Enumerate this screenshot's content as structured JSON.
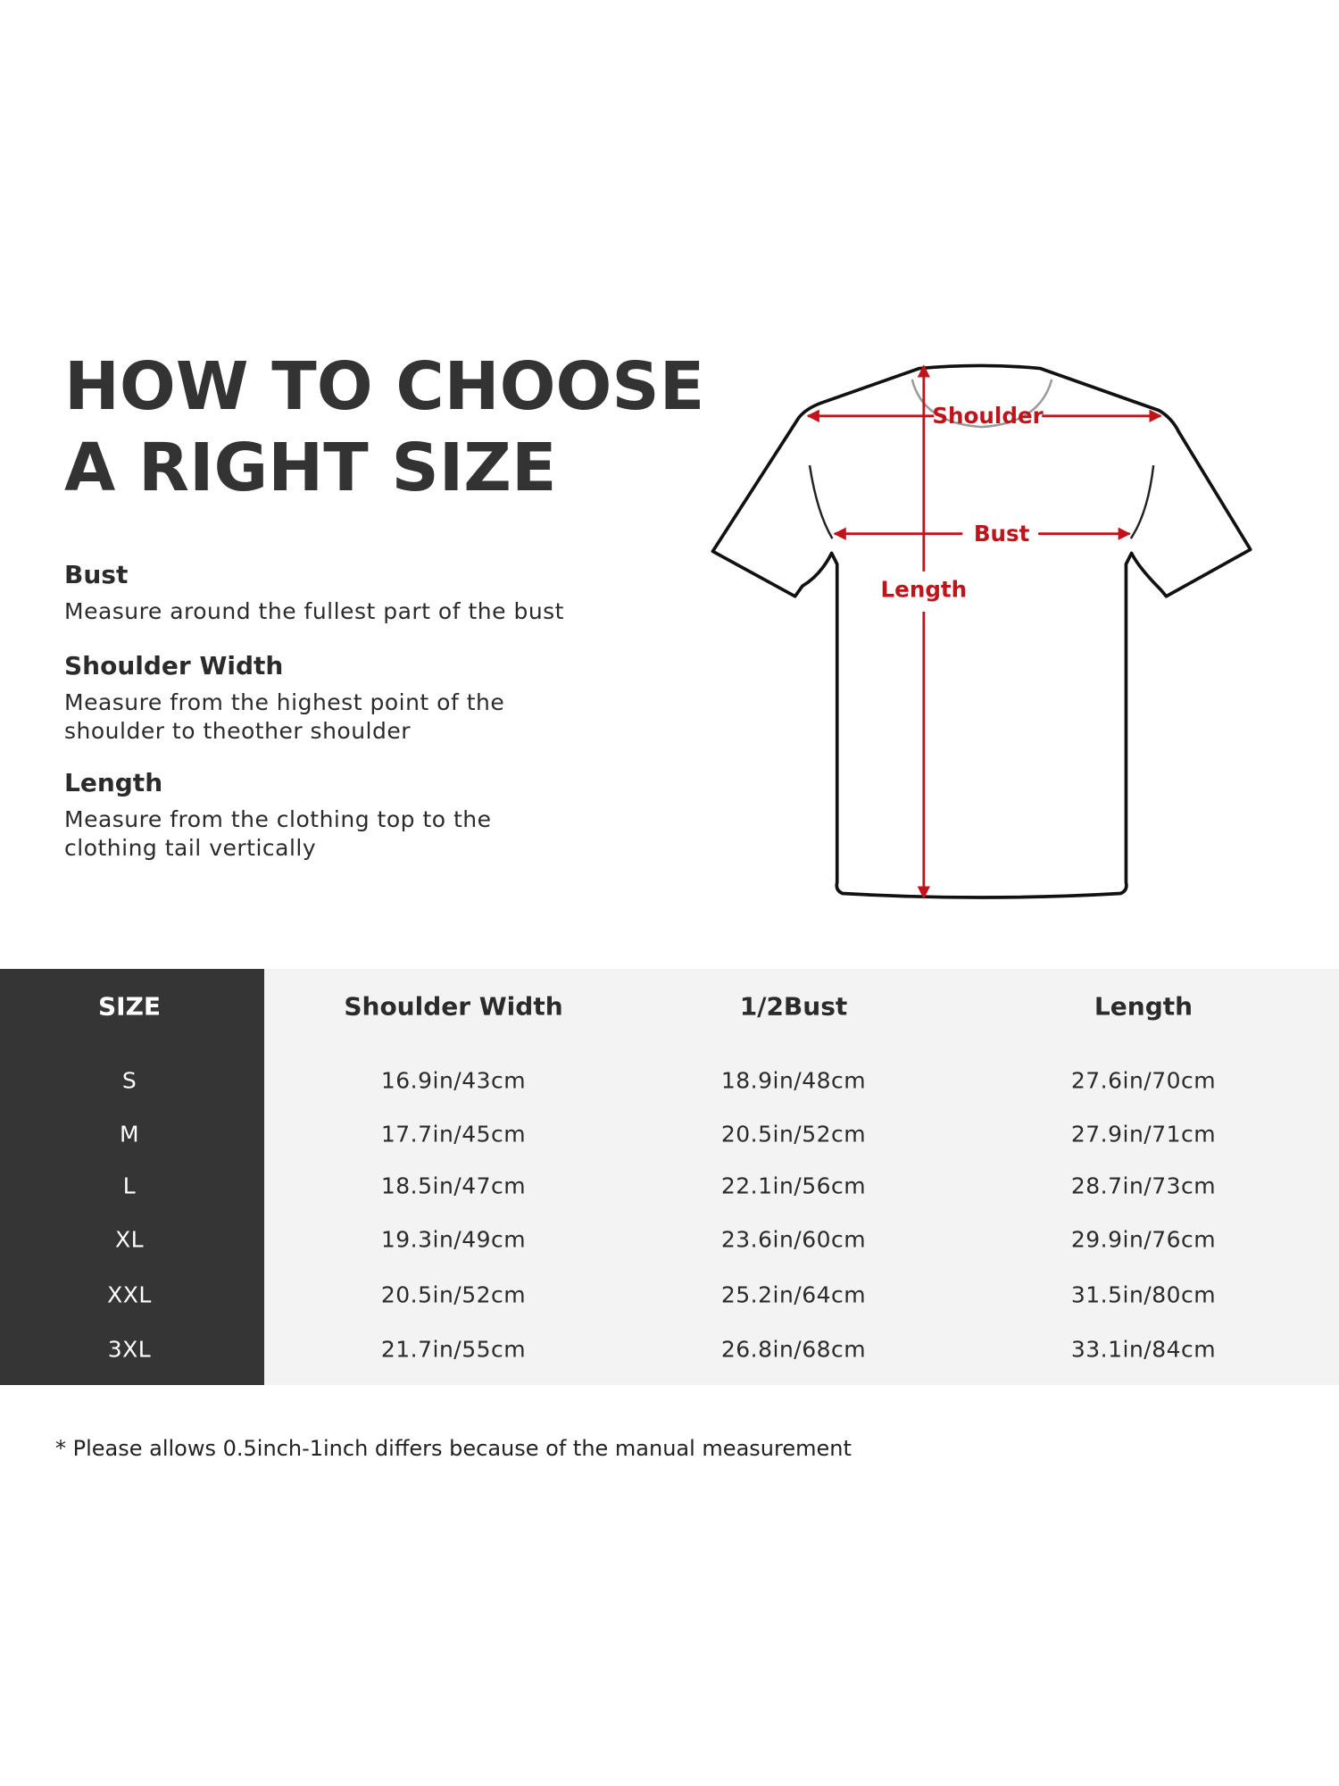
{
  "title": {
    "line1": "HOW TO CHOOSE",
    "line2": "A RIGHT SIZE"
  },
  "guides": [
    {
      "heading": "Bust",
      "lines": [
        "Measure around the fullest part of the bust"
      ]
    },
    {
      "heading": "Shoulder Width",
      "lines": [
        "Measure from the highest point of the",
        "shoulder to theother shoulder"
      ]
    },
    {
      "heading": "Length",
      "lines": [
        "Measure from the clothing top to the",
        "clothing tail vertically"
      ]
    }
  ],
  "diagram": {
    "shoulder_label": "Shoulder",
    "bust_label": "Bust",
    "length_label": "Length",
    "accent_color": "#c0141c"
  },
  "table": {
    "headers": [
      "SIZE",
      "Shoulder Width",
      "1/2Bust",
      "Length"
    ],
    "rows": [
      [
        "S",
        "16.9in/43cm",
        "18.9in/48cm",
        "27.6in/70cm"
      ],
      [
        "M",
        "17.7in/45cm",
        "20.5in/52cm",
        "27.9in/71cm"
      ],
      [
        "L",
        "18.5in/47cm",
        "22.1in/56cm",
        "28.7in/73cm"
      ],
      [
        "XL",
        "19.3in/49cm",
        "23.6in/60cm",
        "29.9in/76cm"
      ],
      [
        "XXL",
        "20.5in/52cm",
        "25.2in/64cm",
        "31.5in/80cm"
      ],
      [
        "3XL",
        "21.7in/55cm",
        "26.8in/68cm",
        "33.1in/84cm"
      ]
    ]
  },
  "footnote": "* Please allows 0.5inch-1inch differs because of the  manual measurement"
}
